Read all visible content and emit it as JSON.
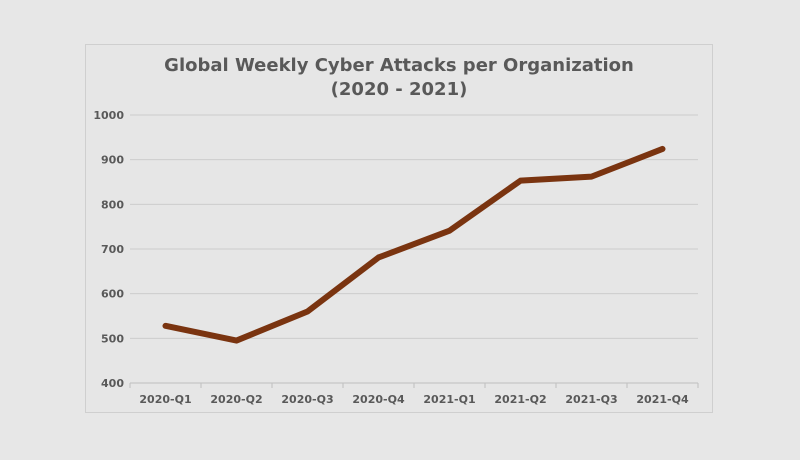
{
  "chart_data": {
    "type": "line",
    "title_line1": "Global Weekly Cyber Attacks per Organization",
    "title_line2": "(2020 - 2021)",
    "xlabel": "",
    "ylabel": "",
    "categories": [
      "2020-Q1",
      "2020-Q2",
      "2020-Q3",
      "2020-Q4",
      "2021-Q1",
      "2021-Q2",
      "2021-Q3",
      "2021-Q4"
    ],
    "values": [
      528,
      495,
      560,
      681,
      741,
      853,
      862,
      924
    ],
    "ylim": [
      400,
      1000
    ],
    "yticks": [
      "400",
      "500",
      "600",
      "700",
      "800",
      "900",
      "1000"
    ],
    "grid": true,
    "legend": "none",
    "line_color": "#7a3410"
  }
}
